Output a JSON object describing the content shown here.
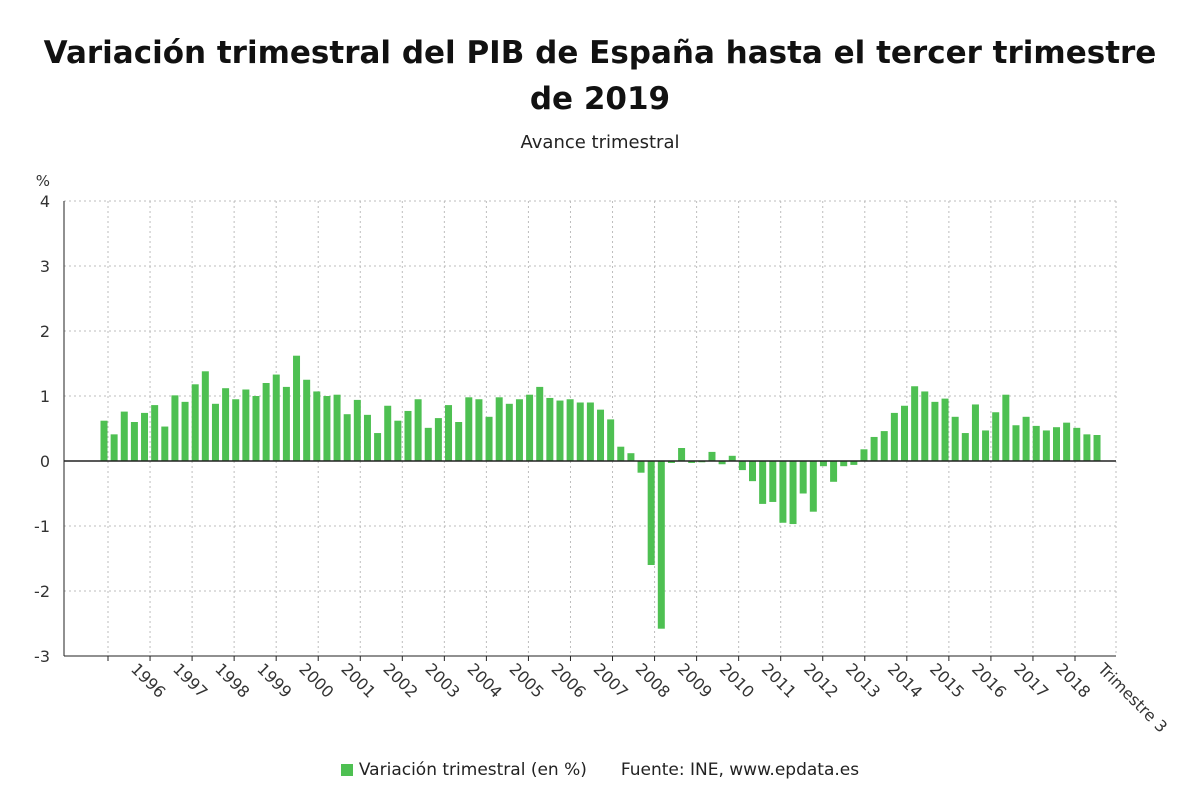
{
  "title": "Variación trimestral del PIB de España hasta el tercer trimestre de 2019",
  "subtitle": "Avance trimestral",
  "source": "Fuente: INE, www.epdata.es",
  "colors": {
    "bar": "#4ec052",
    "grid": "#bdbdbd",
    "axis": "#222222",
    "text": "#333333"
  },
  "chart_data": {
    "type": "bar",
    "unit_label": "%",
    "ylim": [
      -3,
      4
    ],
    "yticks": [
      -3,
      -2,
      -1,
      0,
      1,
      2,
      3,
      4
    ],
    "grid": "dotted",
    "legend_position": "bottom",
    "x_tick_labels": [
      "1996",
      "1997",
      "1998",
      "1999",
      "2000",
      "2001",
      "2002",
      "2003",
      "2004",
      "2005",
      "2006",
      "2007",
      "2008",
      "2009",
      "2010",
      "2011",
      "2012",
      "2013",
      "2014",
      "2015",
      "2016",
      "2017",
      "2018",
      "Trimestre 3"
    ],
    "series": [
      {
        "name": "Variación trimestral (en %)",
        "values": [
          0.62,
          0.41,
          0.76,
          0.6,
          0.74,
          0.86,
          0.53,
          1.01,
          0.91,
          1.18,
          1.38,
          0.88,
          1.12,
          0.95,
          1.1,
          1.0,
          1.2,
          1.33,
          1.14,
          1.62,
          1.25,
          1.07,
          1.0,
          1.02,
          0.72,
          0.94,
          0.71,
          0.43,
          0.85,
          0.62,
          0.77,
          0.95,
          0.51,
          0.66,
          0.86,
          0.6,
          0.98,
          0.95,
          0.68,
          0.98,
          0.88,
          0.95,
          1.02,
          1.14,
          0.97,
          0.93,
          0.95,
          0.9,
          0.9,
          0.79,
          0.64,
          0.22,
          0.12,
          -0.18,
          -1.6,
          -2.58,
          -0.03,
          0.2,
          -0.03,
          -0.02,
          0.14,
          -0.05,
          0.08,
          -0.14,
          -0.31,
          -0.66,
          -0.63,
          -0.95,
          -0.97,
          -0.5,
          -0.78,
          -0.08,
          -0.32,
          -0.08,
          -0.06,
          0.18,
          0.37,
          0.46,
          0.74,
          0.85,
          1.15,
          1.07,
          0.91,
          0.96,
          0.68,
          0.43,
          0.87,
          0.47,
          0.75,
          1.02,
          0.55,
          0.68,
          0.54,
          0.47,
          0.52,
          0.59,
          0.51,
          0.41,
          0.4
        ]
      }
    ]
  }
}
